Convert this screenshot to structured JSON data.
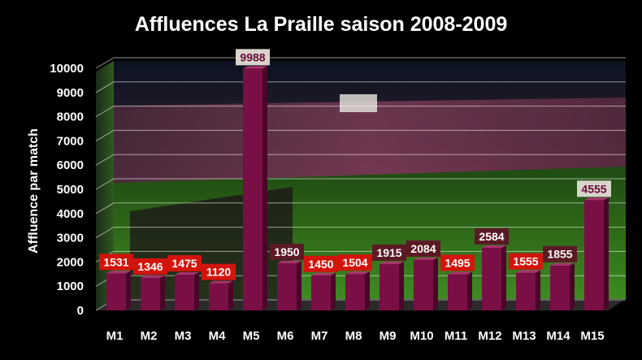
{
  "chart_data": {
    "type": "bar",
    "title": "Affluences La Praille saison 2008-2009",
    "xlabel": "",
    "ylabel": "Affluence par match",
    "ylim": [
      0,
      10000
    ],
    "yticks": [
      0,
      1000,
      2000,
      3000,
      4000,
      5000,
      6000,
      7000,
      8000,
      9000,
      10000
    ],
    "grid": true,
    "legend": "none",
    "categories": [
      "M1",
      "M2",
      "M3",
      "M4",
      "M5",
      "M6",
      "M7",
      "M8",
      "M9",
      "M10",
      "M11",
      "M12",
      "M13",
      "M14",
      "M15"
    ],
    "values": [
      1531,
      1346,
      1475,
      1120,
      9988,
      1950,
      1450,
      1504,
      1915,
      2084,
      1495,
      2584,
      1555,
      1855,
      4555
    ],
    "label_styles": [
      "red",
      "red",
      "red",
      "red",
      "light",
      "maroon",
      "red",
      "red",
      "maroon",
      "maroon",
      "red",
      "maroon",
      "red",
      "maroon",
      "light"
    ],
    "colors": {
      "bar": "#7a0f45",
      "bar_side": "#4a0528",
      "bar_top": "#a8336e",
      "label_red_bg": "#d3140c",
      "label_maroon_bg": "#5a1a24",
      "label_light_bg": "#d8d4cc",
      "label_light_text": "#6a0a3a",
      "text": "#ffffff"
    }
  }
}
